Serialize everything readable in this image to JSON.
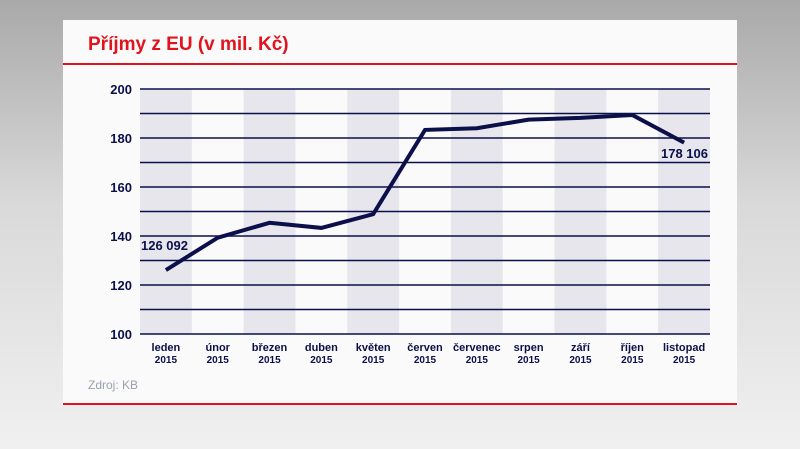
{
  "chart_data": {
    "type": "line",
    "title": "Příjmy z EU (v mil. Kč)",
    "source": "Zdroj: KB",
    "categories": [
      [
        "leden",
        "2015"
      ],
      [
        "únor",
        "2015"
      ],
      [
        "březen",
        "2015"
      ],
      [
        "duben",
        "2015"
      ],
      [
        "květen",
        "2015"
      ],
      [
        "červen",
        "2015"
      ],
      [
        "červenec",
        "2015"
      ],
      [
        "srpen",
        "2015"
      ],
      [
        "září",
        "2015"
      ],
      [
        "říjen",
        "2015"
      ],
      [
        "listopad",
        "2015"
      ]
    ],
    "values": [
      126.092,
      139.3,
      145.4,
      143.3,
      148.9,
      183.3,
      184.0,
      187.5,
      188.2,
      189.4,
      178.106
    ],
    "data_labels": {
      "first": "126 092",
      "last": "178 106"
    },
    "ylim": [
      100,
      200
    ],
    "yticks": [
      100,
      120,
      140,
      160,
      180,
      200
    ],
    "grid_step": 10,
    "colors": {
      "line": "#0b0f4a",
      "title": "#e1141e",
      "band": "#e6e6ec"
    }
  }
}
